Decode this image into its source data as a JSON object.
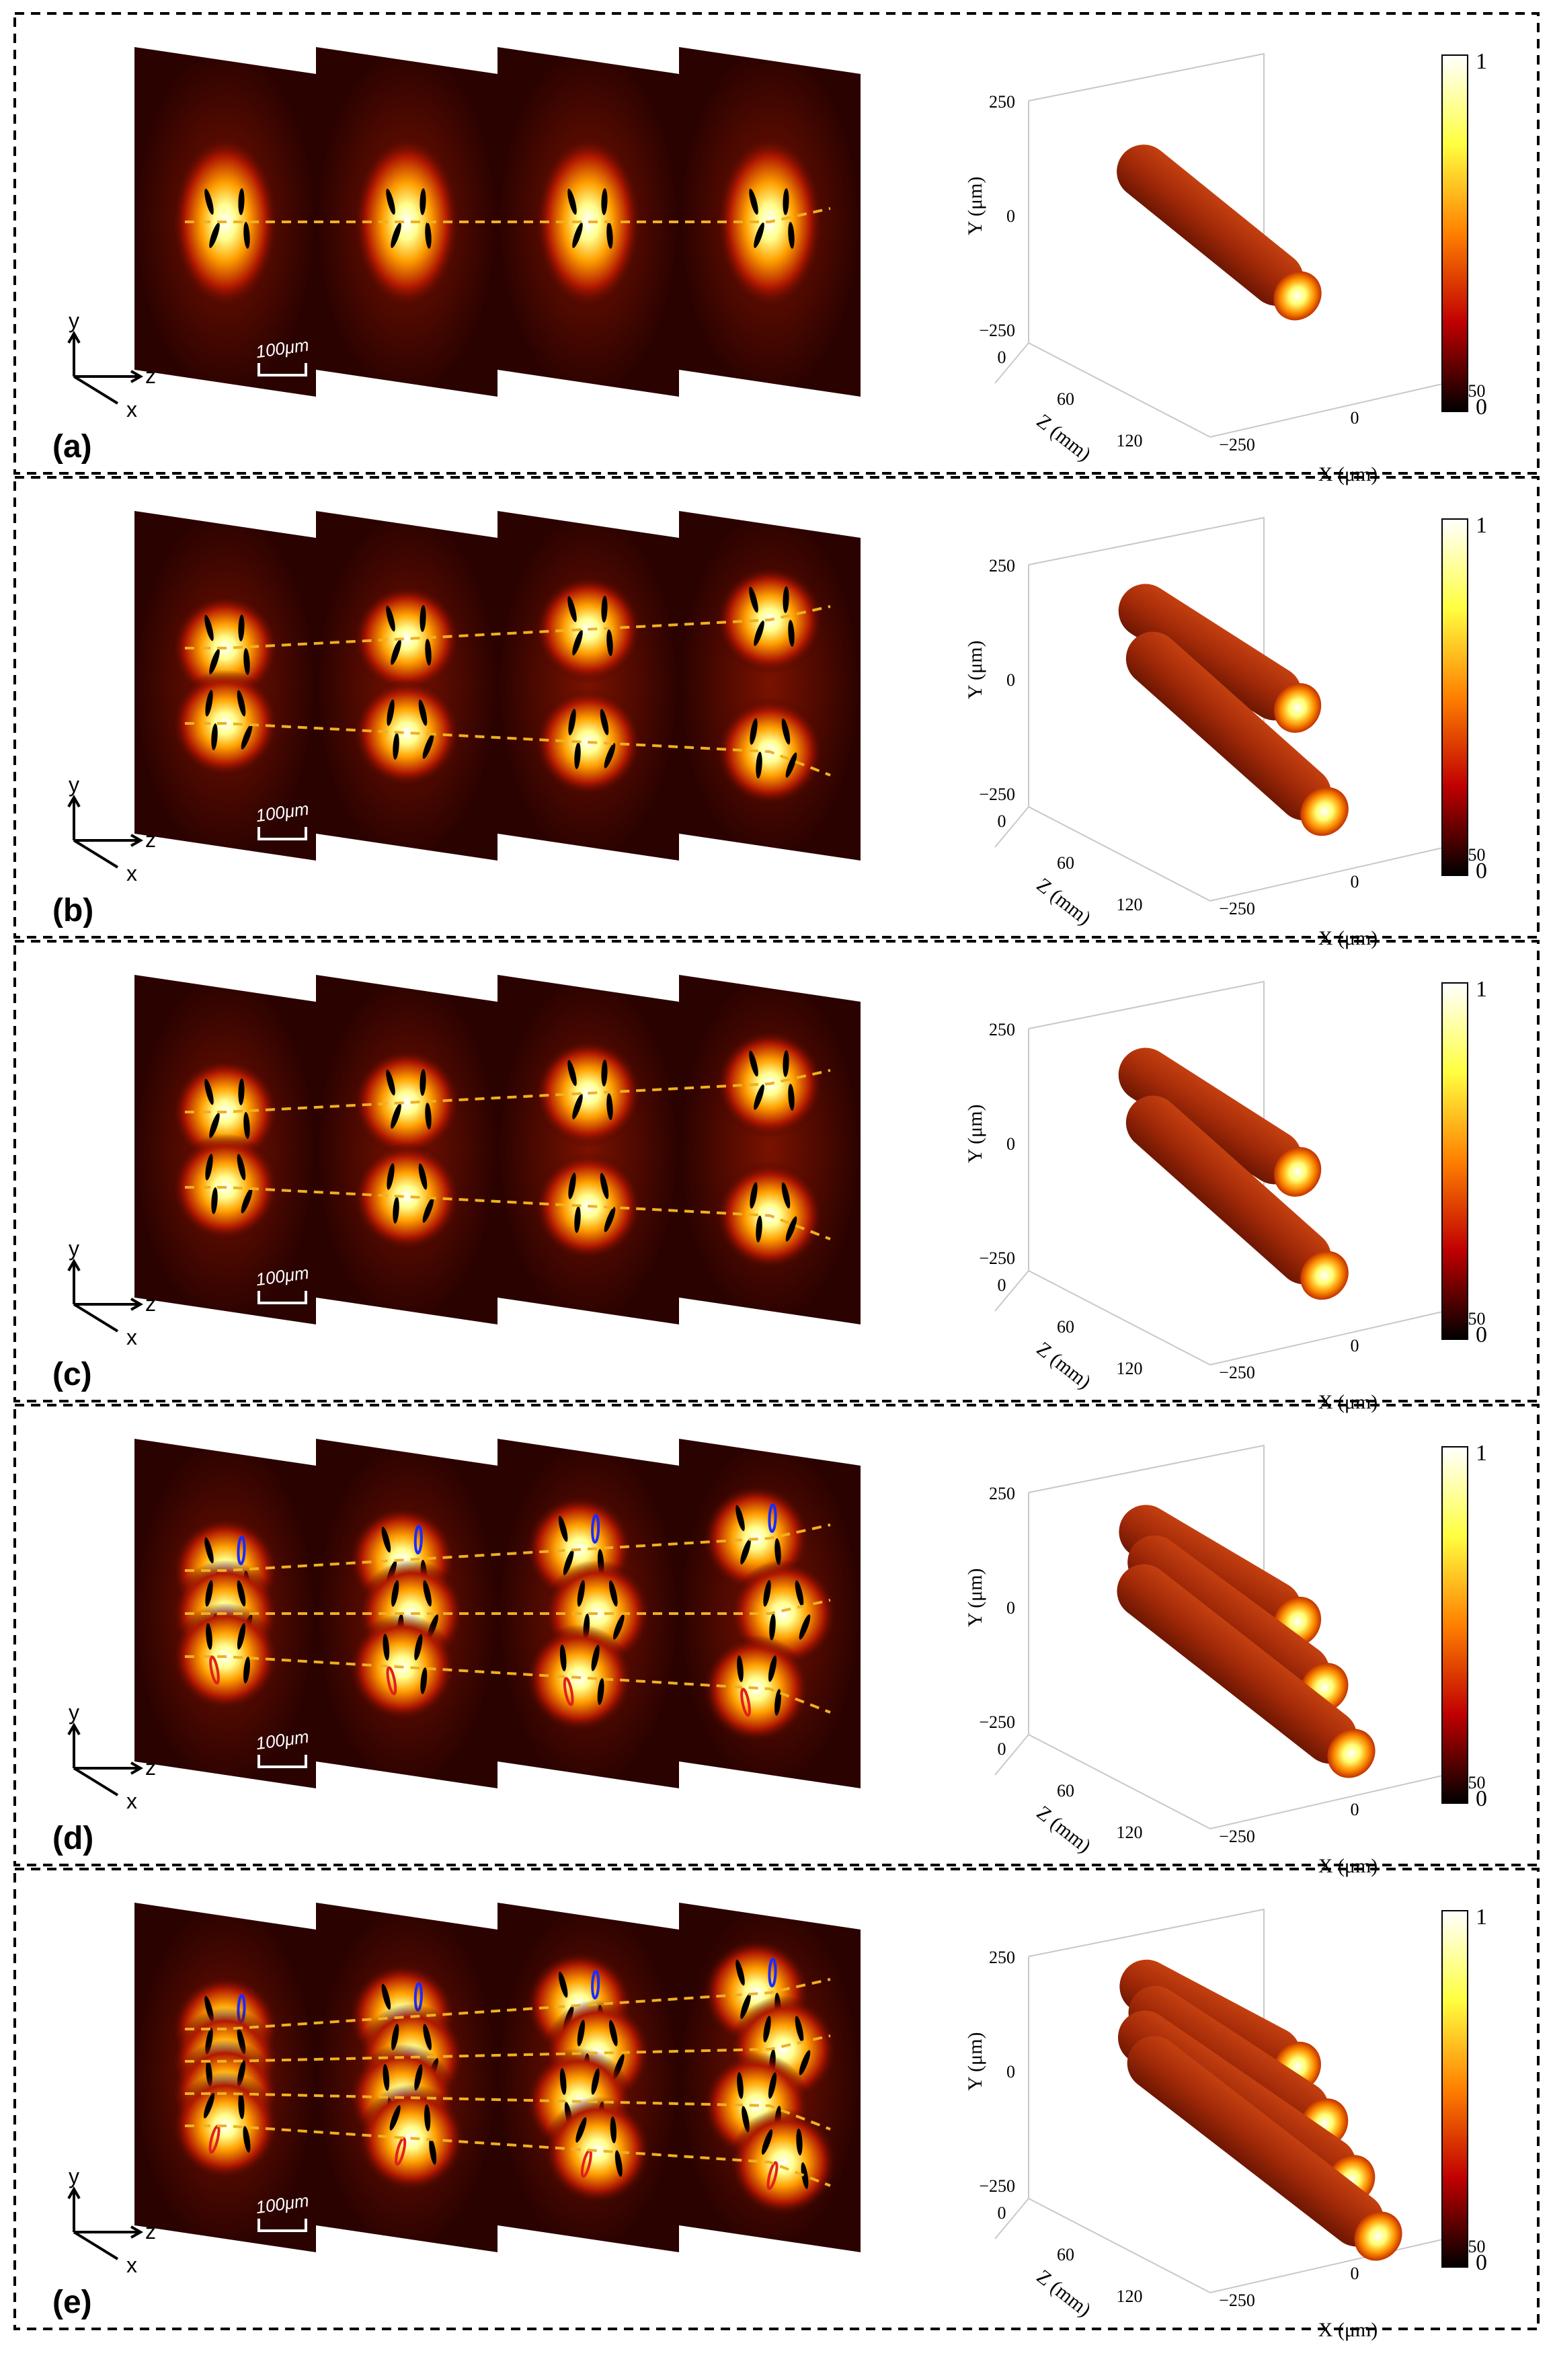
{
  "figure": {
    "colorbar": {
      "max_label": "1",
      "min_label": "0"
    },
    "scale_bar_label": "100μm",
    "slice_axes": {
      "y": "y",
      "z": "z",
      "x": "x"
    },
    "volume_axes": {
      "y_label": "Y (μm)",
      "z_label": "Z (mm)",
      "x_label": "X (μm)",
      "y_ticks": [
        "250",
        "0",
        "−250"
      ],
      "z_ticks": [
        "0",
        "60",
        "120"
      ],
      "x_ticks": [
        "−250",
        "0",
        "250"
      ]
    },
    "panels": [
      {
        "label": "(a)",
        "beams": 1
      },
      {
        "label": "(b)",
        "beams": 2
      },
      {
        "label": "(c)",
        "beams": 2
      },
      {
        "label": "(d)",
        "beams": 3
      },
      {
        "label": "(e)",
        "beams": 4
      }
    ],
    "colors": {
      "hot_dark": "#1a0000",
      "hot_mid": "#8b1a00",
      "hot_bright": "#ff8c00",
      "hot_peak": "#ffff80",
      "trace": "#f0b020",
      "ellipse_black": "#000000",
      "ellipse_blue": "#1a2cff",
      "ellipse_red": "#e02020"
    }
  }
}
